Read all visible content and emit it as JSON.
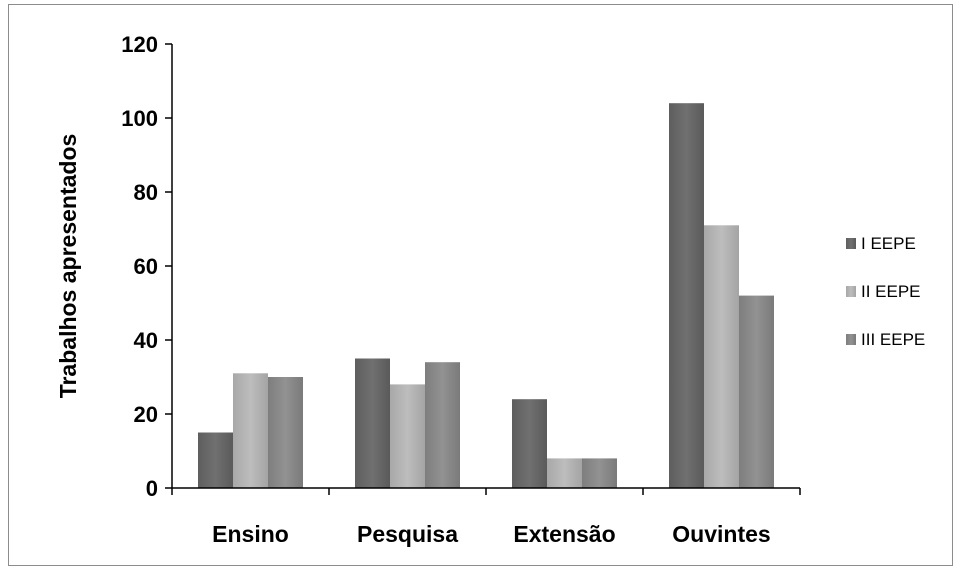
{
  "chart_data": {
    "type": "bar",
    "title": "",
    "xlabel": "",
    "ylabel": "Trabalhos apresentados",
    "categories": [
      "Ensino",
      "Pesquisa",
      "Extensão",
      "Ouvintes"
    ],
    "series": [
      {
        "name": "I EEPE",
        "values": [
          15,
          35,
          24,
          104
        ],
        "color": "#6a6a6a"
      },
      {
        "name": "II EEPE",
        "values": [
          31,
          28,
          8,
          71
        ],
        "color": "#b4b4b4"
      },
      {
        "name": "III EEPE",
        "values": [
          30,
          34,
          8,
          52
        ],
        "color": "#8a8a8a"
      }
    ],
    "ylim": [
      0,
      120
    ],
    "yticks": [
      0,
      20,
      40,
      60,
      80,
      100,
      120
    ],
    "grid": false,
    "legend_position": "right"
  }
}
